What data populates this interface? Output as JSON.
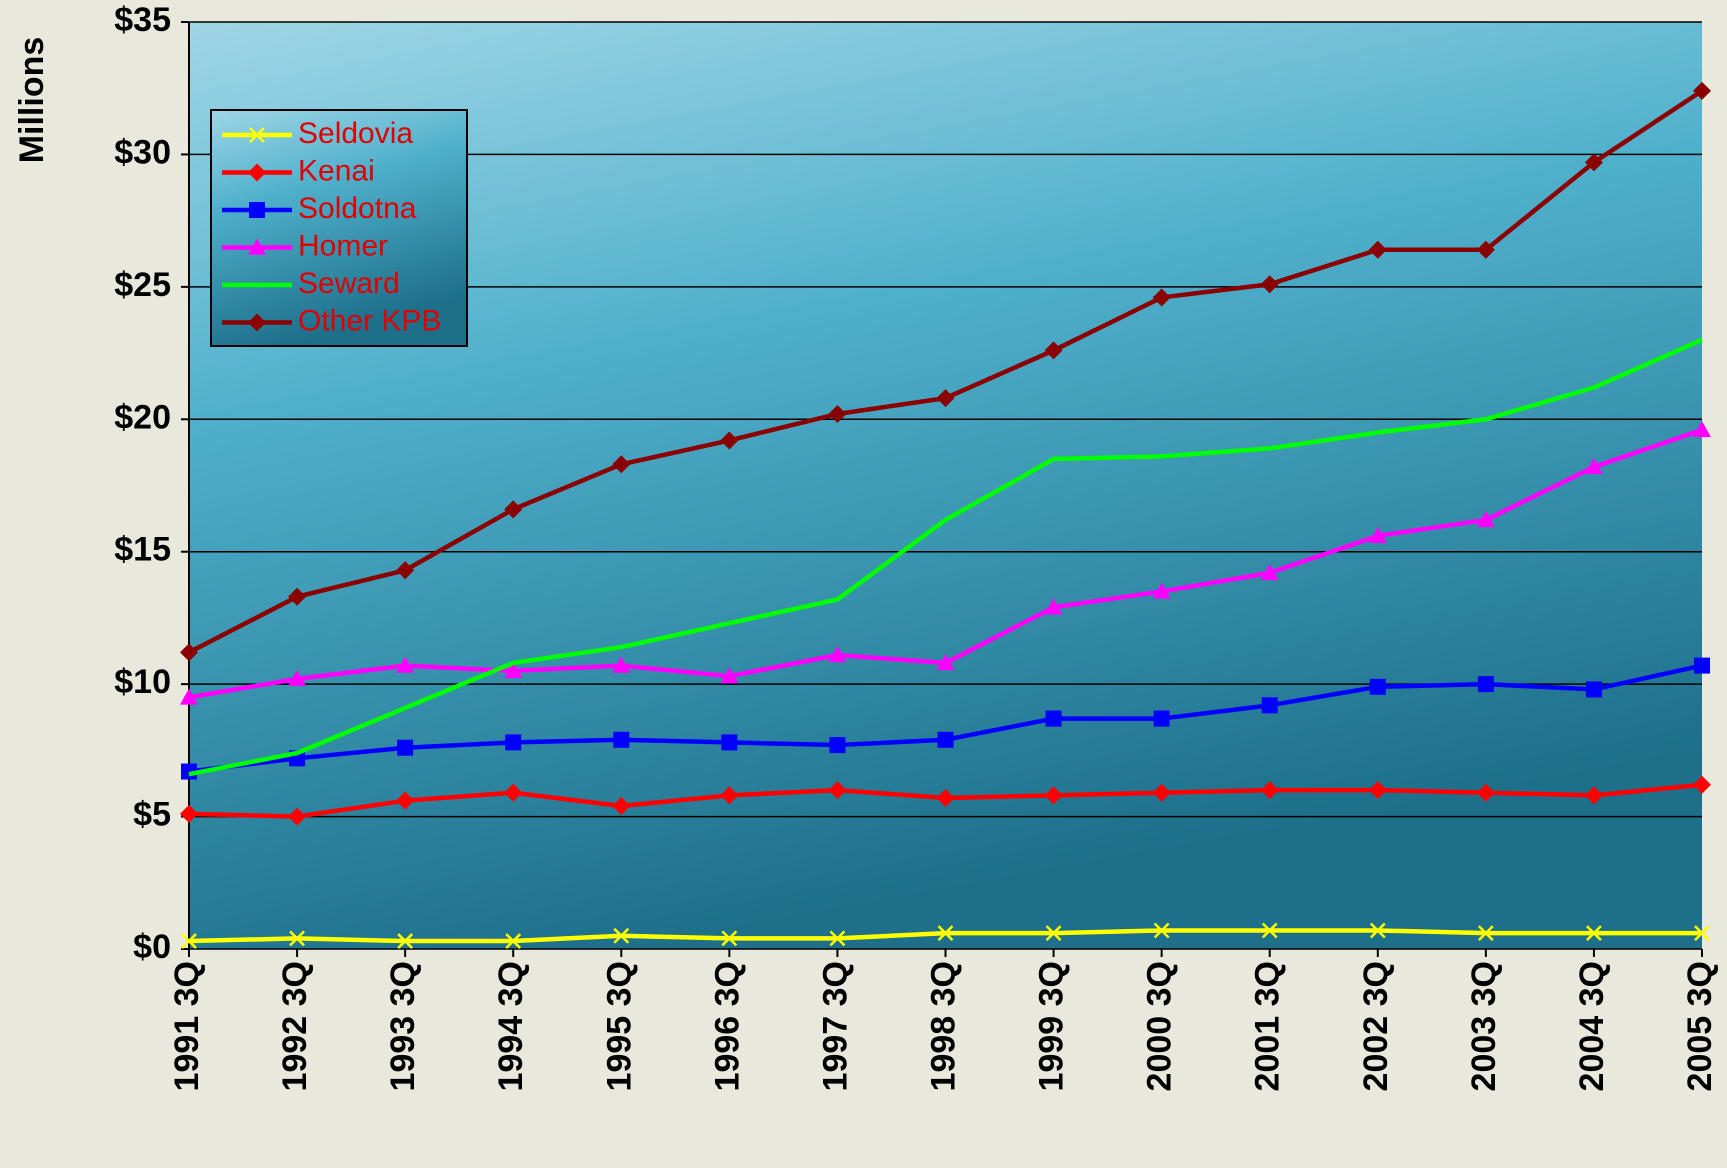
{
  "chart_data": {
    "type": "line",
    "y_label": "Millions",
    "categories": [
      "1991 3Q",
      "1992 3Q",
      "1993 3Q",
      "1994 3Q",
      "1995 3Q",
      "1996 3Q",
      "1997 3Q",
      "1998 3Q",
      "1999 3Q",
      "2000 3Q",
      "2001 3Q",
      "2002 3Q",
      "2003 3Q",
      "2004 3Q",
      "2005 3Q"
    ],
    "ylim": [
      0,
      35
    ],
    "yticks": [
      {
        "value": 0,
        "label": "$0"
      },
      {
        "value": 5,
        "label": "$5"
      },
      {
        "value": 10,
        "label": "$10"
      },
      {
        "value": 15,
        "label": "$15"
      },
      {
        "value": 20,
        "label": "$20"
      },
      {
        "value": 25,
        "label": "$25"
      },
      {
        "value": 30,
        "label": "$30"
      },
      {
        "value": 35,
        "label": "$35"
      }
    ],
    "grid": true,
    "series": [
      {
        "name": "Seldovia",
        "color": "#ffff00",
        "marker": "x",
        "values": [
          0.3,
          0.4,
          0.3,
          0.3,
          0.5,
          0.4,
          0.4,
          0.6,
          0.6,
          0.7,
          0.7,
          0.7,
          0.6,
          0.6,
          0.6
        ]
      },
      {
        "name": "Kenai",
        "color": "#ff0000",
        "marker": "diamond",
        "values": [
          5.1,
          5.0,
          5.6,
          5.9,
          5.4,
          5.8,
          6.0,
          5.7,
          5.8,
          5.9,
          6.0,
          6.0,
          5.9,
          5.8,
          6.2
        ]
      },
      {
        "name": "Soldotna",
        "color": "#0000ff",
        "marker": "square",
        "values": [
          6.7,
          7.2,
          7.6,
          7.8,
          7.9,
          7.8,
          7.7,
          7.9,
          8.7,
          8.7,
          9.2,
          9.9,
          10.0,
          9.8,
          10.7
        ]
      },
      {
        "name": "Homer",
        "color": "#ff00ff",
        "marker": "triangle",
        "values": [
          9.5,
          10.2,
          10.7,
          10.5,
          10.7,
          10.3,
          11.1,
          10.8,
          12.9,
          13.5,
          14.2,
          15.6,
          16.2,
          18.2,
          19.6
        ]
      },
      {
        "name": "Seward",
        "color": "#00ff00",
        "marker": "none",
        "values": [
          6.6,
          7.4,
          9.1,
          10.8,
          11.4,
          12.3,
          13.2,
          16.2,
          18.5,
          18.6,
          18.9,
          19.5,
          20.0,
          21.2,
          23.0
        ]
      },
      {
        "name": "Other KPB",
        "color": "#8b0000",
        "marker": "diamond",
        "values": [
          11.2,
          13.3,
          14.3,
          16.6,
          18.3,
          19.2,
          20.2,
          20.8,
          22.6,
          24.6,
          25.1,
          26.4,
          26.4,
          29.7,
          32.4
        ]
      }
    ]
  }
}
